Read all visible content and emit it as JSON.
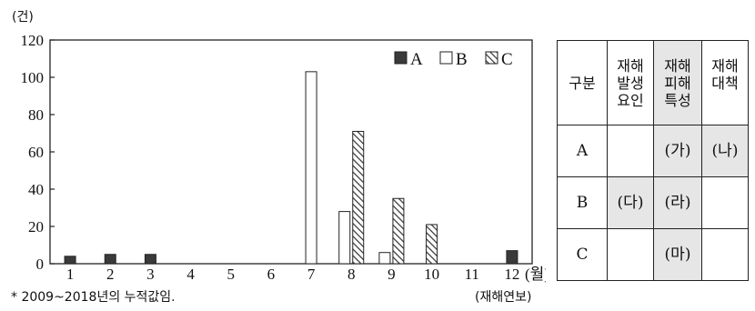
{
  "chart_data": {
    "type": "bar",
    "y_unit": "(건)",
    "x_unit": "(월)",
    "x_caption": "(재해연보)",
    "footnote": "* 2009~2018년의 누적값임.",
    "categories": [
      "1",
      "2",
      "3",
      "4",
      "5",
      "6",
      "7",
      "8",
      "9",
      "10",
      "11",
      "12"
    ],
    "ylim": [
      0,
      120
    ],
    "yticks": [
      0,
      20,
      40,
      60,
      80,
      100,
      120
    ],
    "legend_position": "top-right",
    "series": [
      {
        "name": "A",
        "color": "#3a3a3a",
        "pattern": "solid-dark",
        "values": [
          4,
          5,
          5,
          0,
          0,
          0,
          0,
          0,
          0,
          0,
          0,
          7
        ]
      },
      {
        "name": "B",
        "color": "#ffffff",
        "pattern": "white",
        "values": [
          0,
          0,
          0,
          0,
          0,
          0,
          103,
          28,
          6,
          0,
          0,
          0
        ]
      },
      {
        "name": "C",
        "color": "#888888",
        "pattern": "hatched",
        "values": [
          0,
          0,
          0,
          0,
          0,
          0,
          0,
          71,
          35,
          21,
          0,
          0
        ]
      }
    ]
  },
  "table": {
    "header_first": "구분",
    "headers": [
      [
        "재해",
        "발생",
        "요인"
      ],
      [
        "재해",
        "피해",
        "특성"
      ],
      [
        "재해",
        "대책"
      ]
    ],
    "rows": [
      {
        "label": "A",
        "cells": [
          "",
          "(가)",
          "(나)"
        ],
        "shaded": [
          false,
          true,
          true
        ]
      },
      {
        "label": "B",
        "cells": [
          "(다)",
          "(라)",
          ""
        ],
        "shaded": [
          true,
          true,
          false
        ]
      },
      {
        "label": "C",
        "cells": [
          "",
          "(마)",
          ""
        ],
        "shaded": [
          false,
          true,
          false
        ]
      }
    ]
  }
}
